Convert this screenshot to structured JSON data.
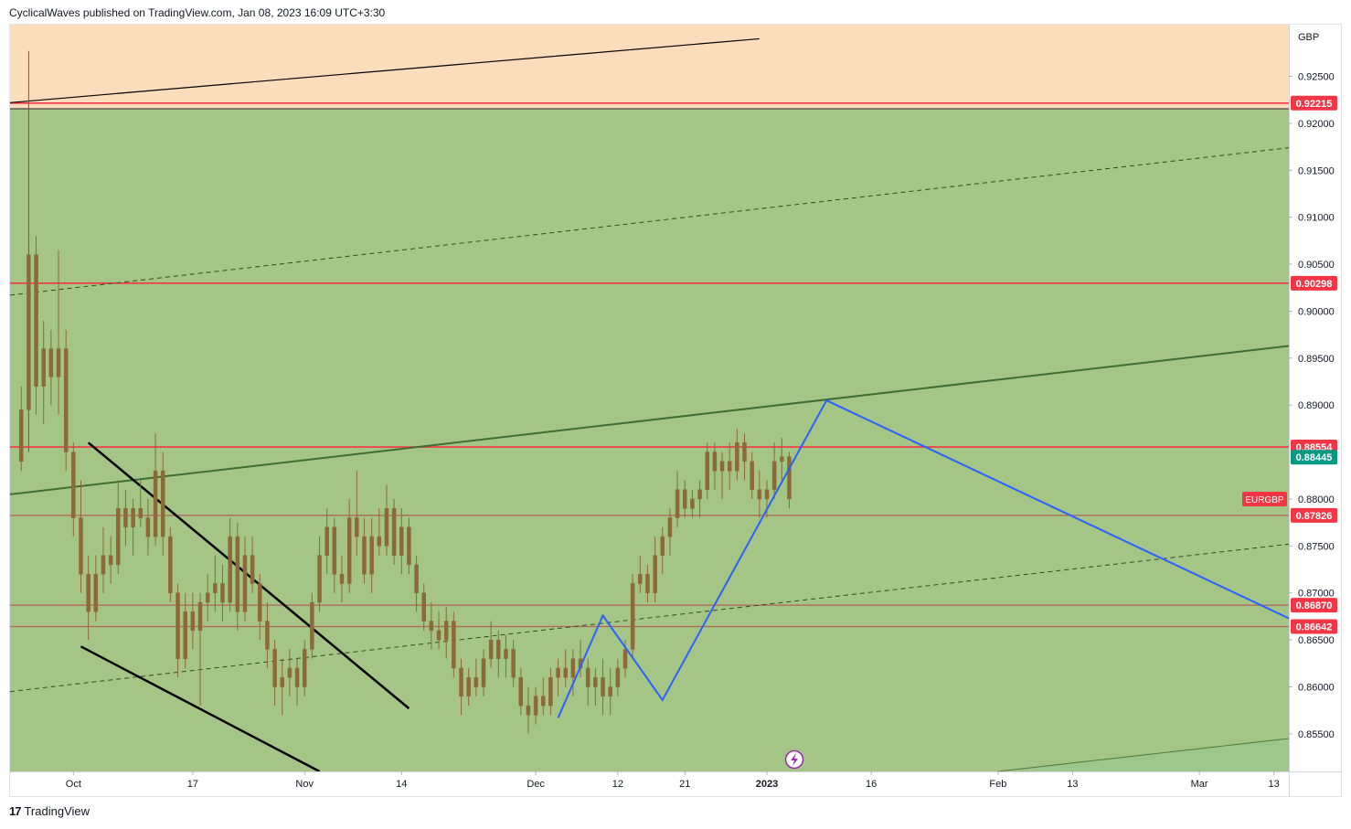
{
  "header": {
    "text": "CyclicalWaves published on TradingView.com, Jan 08, 2023 16:09 UTC+3:30"
  },
  "footer": {
    "logo_glyph": "17",
    "brand": "TradingView"
  },
  "colors": {
    "upper_zone": "#fbdcbb",
    "main_zone": "#a4c585",
    "lower_zone": "#9dc78d",
    "candle": "#8c6a38",
    "red_line": "#f23645",
    "brown_line": "#b0645a",
    "blue_path": "#2962ff",
    "channel_line": "#3f6e34",
    "price_tag_red": "#f23645",
    "price_tag_teal": "#089981"
  },
  "chart_data": {
    "type": "candlestick",
    "symbol": "EURGBP",
    "currency_label": "GBP",
    "ylim": [
      0.851,
      0.9305
    ],
    "y_ticks": [
      "0.92500",
      "0.92000",
      "0.91500",
      "0.91000",
      "0.90500",
      "0.90000",
      "0.89500",
      "0.89000",
      "0.88000",
      "0.87500",
      "0.87000",
      "0.86500",
      "0.86000",
      "0.85500"
    ],
    "x_ticks": [
      {
        "label": "Oct",
        "day": 7,
        "bold": false
      },
      {
        "label": "17",
        "day": 23,
        "bold": false
      },
      {
        "label": "Nov",
        "day": 38,
        "bold": false
      },
      {
        "label": "14",
        "day": 51,
        "bold": false
      },
      {
        "label": "Dec",
        "day": 69,
        "bold": false
      },
      {
        "label": "12",
        "day": 80,
        "bold": false
      },
      {
        "label": "21",
        "day": 89,
        "bold": false
      },
      {
        "label": "2023",
        "day": 100,
        "bold": true
      },
      {
        "label": "16",
        "day": 114,
        "bold": false
      },
      {
        "label": "Feb",
        "day": 131,
        "bold": false
      },
      {
        "label": "13",
        "day": 141,
        "bold": false
      },
      {
        "label": "Mar",
        "day": 158,
        "bold": false
      },
      {
        "label": "13",
        "day": 168,
        "bold": false
      }
    ],
    "xlim": [
      -1.5,
      170
    ],
    "price_labels": [
      {
        "price": 0.92215,
        "text": "0.92215",
        "style": "red"
      },
      {
        "price": 0.90298,
        "text": "0.90298",
        "style": "red"
      },
      {
        "price": 0.88554,
        "text": "0.88554",
        "style": "red"
      },
      {
        "price": 0.88445,
        "text": "0.88445",
        "style": "teal"
      },
      {
        "price": 0.87826,
        "text": "0.87826",
        "style": "red"
      },
      {
        "price": 0.8687,
        "text": "0.86870",
        "style": "red"
      },
      {
        "price": 0.86642,
        "text": "0.86642",
        "style": "red"
      }
    ],
    "symbol_tag_price": 0.88,
    "horizontal_lines": [
      {
        "price": 0.92215,
        "kind": "red"
      },
      {
        "price": 0.92155,
        "kind": "dark"
      },
      {
        "price": 0.90298,
        "kind": "red"
      },
      {
        "price": 0.88554,
        "kind": "red"
      },
      {
        "price": 0.87826,
        "kind": "brown"
      },
      {
        "price": 0.8687,
        "kind": "brown"
      },
      {
        "price": 0.86642,
        "kind": "brown"
      }
    ],
    "zones": [
      {
        "from": 0.92155,
        "to": 0.9305,
        "kind": "upper"
      },
      {
        "from": 0.851,
        "to": 0.92155,
        "kind": "main"
      }
    ],
    "trend_lines": [
      {
        "p1": [
          -1.5,
          0.9222
        ],
        "p2": [
          99,
          0.929
        ],
        "style": "solid",
        "kind": "black-thin"
      },
      {
        "p1": [
          -1.5,
          0.9017
        ],
        "p2": [
          170,
          0.9174
        ],
        "style": "dashed",
        "kind": "dark-dashed"
      },
      {
        "p1": [
          -1.5,
          0.8805
        ],
        "p2": [
          170,
          0.8963
        ],
        "style": "solid",
        "kind": "channel"
      },
      {
        "p1": [
          -1.5,
          0.8595
        ],
        "p2": [
          170,
          0.8752
        ],
        "style": "dashed",
        "kind": "dark-dashed"
      },
      {
        "p1": [
          131,
          0.851
        ],
        "p2": [
          170,
          0.8545
        ],
        "style": "solid",
        "kind": "lower-green"
      },
      {
        "p1": [
          9,
          0.886
        ],
        "p2": [
          52,
          0.8577
        ],
        "style": "solid",
        "kind": "black-thick"
      },
      {
        "p1": [
          8,
          0.8643
        ],
        "p2": [
          40,
          0.851
        ],
        "style": "solid",
        "kind": "black-thick"
      }
    ],
    "projection_path": [
      [
        72,
        0.8567
      ],
      [
        78,
        0.8676
      ],
      [
        86,
        0.8586
      ],
      [
        108,
        0.8905
      ],
      [
        170,
        0.8673
      ]
    ],
    "candles": [
      {
        "d": 0,
        "o": 0.884,
        "h": 0.892,
        "l": 0.883,
        "c": 0.8895
      },
      {
        "d": 1,
        "o": 0.8895,
        "h": 0.9277,
        "l": 0.885,
        "c": 0.906
      },
      {
        "d": 2,
        "o": 0.906,
        "h": 0.908,
        "l": 0.889,
        "c": 0.892
      },
      {
        "d": 3,
        "o": 0.892,
        "h": 0.899,
        "l": 0.888,
        "c": 0.896
      },
      {
        "d": 4,
        "o": 0.896,
        "h": 0.898,
        "l": 0.89,
        "c": 0.893
      },
      {
        "d": 5,
        "o": 0.893,
        "h": 0.9065,
        "l": 0.889,
        "c": 0.896
      },
      {
        "d": 6,
        "o": 0.896,
        "h": 0.898,
        "l": 0.883,
        "c": 0.885
      },
      {
        "d": 7,
        "o": 0.885,
        "h": 0.886,
        "l": 0.876,
        "c": 0.878
      },
      {
        "d": 8,
        "o": 0.878,
        "h": 0.882,
        "l": 0.87,
        "c": 0.872
      },
      {
        "d": 9,
        "o": 0.872,
        "h": 0.874,
        "l": 0.865,
        "c": 0.868
      },
      {
        "d": 10,
        "o": 0.868,
        "h": 0.874,
        "l": 0.867,
        "c": 0.872
      },
      {
        "d": 11,
        "o": 0.872,
        "h": 0.877,
        "l": 0.87,
        "c": 0.874
      },
      {
        "d": 12,
        "o": 0.874,
        "h": 0.876,
        "l": 0.871,
        "c": 0.873
      },
      {
        "d": 13,
        "o": 0.873,
        "h": 0.882,
        "l": 0.872,
        "c": 0.879
      },
      {
        "d": 14,
        "o": 0.879,
        "h": 0.881,
        "l": 0.875,
        "c": 0.877
      },
      {
        "d": 15,
        "o": 0.877,
        "h": 0.88,
        "l": 0.874,
        "c": 0.879
      },
      {
        "d": 16,
        "o": 0.879,
        "h": 0.882,
        "l": 0.877,
        "c": 0.878
      },
      {
        "d": 17,
        "o": 0.878,
        "h": 0.88,
        "l": 0.874,
        "c": 0.876
      },
      {
        "d": 18,
        "o": 0.876,
        "h": 0.887,
        "l": 0.875,
        "c": 0.883
      },
      {
        "d": 19,
        "o": 0.883,
        "h": 0.885,
        "l": 0.874,
        "c": 0.876
      },
      {
        "d": 20,
        "o": 0.876,
        "h": 0.877,
        "l": 0.869,
        "c": 0.87
      },
      {
        "d": 21,
        "o": 0.87,
        "h": 0.871,
        "l": 0.861,
        "c": 0.863
      },
      {
        "d": 22,
        "o": 0.863,
        "h": 0.87,
        "l": 0.862,
        "c": 0.868
      },
      {
        "d": 23,
        "o": 0.868,
        "h": 0.87,
        "l": 0.864,
        "c": 0.866
      },
      {
        "d": 24,
        "o": 0.866,
        "h": 0.87,
        "l": 0.858,
        "c": 0.869
      },
      {
        "d": 25,
        "o": 0.869,
        "h": 0.872,
        "l": 0.867,
        "c": 0.87
      },
      {
        "d": 26,
        "o": 0.87,
        "h": 0.874,
        "l": 0.868,
        "c": 0.871
      },
      {
        "d": 27,
        "o": 0.871,
        "h": 0.873,
        "l": 0.867,
        "c": 0.869
      },
      {
        "d": 28,
        "o": 0.869,
        "h": 0.878,
        "l": 0.868,
        "c": 0.876
      },
      {
        "d": 29,
        "o": 0.876,
        "h": 0.8775,
        "l": 0.866,
        "c": 0.868
      },
      {
        "d": 30,
        "o": 0.868,
        "h": 0.876,
        "l": 0.867,
        "c": 0.874
      },
      {
        "d": 31,
        "o": 0.874,
        "h": 0.876,
        "l": 0.87,
        "c": 0.871
      },
      {
        "d": 32,
        "o": 0.871,
        "h": 0.872,
        "l": 0.865,
        "c": 0.867
      },
      {
        "d": 33,
        "o": 0.867,
        "h": 0.869,
        "l": 0.862,
        "c": 0.864
      },
      {
        "d": 34,
        "o": 0.864,
        "h": 0.865,
        "l": 0.858,
        "c": 0.86
      },
      {
        "d": 35,
        "o": 0.86,
        "h": 0.863,
        "l": 0.857,
        "c": 0.861
      },
      {
        "d": 36,
        "o": 0.861,
        "h": 0.864,
        "l": 0.859,
        "c": 0.862
      },
      {
        "d": 37,
        "o": 0.862,
        "h": 0.863,
        "l": 0.858,
        "c": 0.86
      },
      {
        "d": 38,
        "o": 0.86,
        "h": 0.865,
        "l": 0.859,
        "c": 0.864
      },
      {
        "d": 39,
        "o": 0.864,
        "h": 0.87,
        "l": 0.863,
        "c": 0.869
      },
      {
        "d": 40,
        "o": 0.869,
        "h": 0.876,
        "l": 0.868,
        "c": 0.874
      },
      {
        "d": 41,
        "o": 0.874,
        "h": 0.879,
        "l": 0.872,
        "c": 0.877
      },
      {
        "d": 42,
        "o": 0.877,
        "h": 0.878,
        "l": 0.87,
        "c": 0.872
      },
      {
        "d": 43,
        "o": 0.872,
        "h": 0.874,
        "l": 0.869,
        "c": 0.871
      },
      {
        "d": 44,
        "o": 0.871,
        "h": 0.88,
        "l": 0.87,
        "c": 0.878
      },
      {
        "d": 45,
        "o": 0.878,
        "h": 0.883,
        "l": 0.874,
        "c": 0.876
      },
      {
        "d": 46,
        "o": 0.876,
        "h": 0.878,
        "l": 0.871,
        "c": 0.872
      },
      {
        "d": 47,
        "o": 0.872,
        "h": 0.878,
        "l": 0.87,
        "c": 0.876
      },
      {
        "d": 48,
        "o": 0.876,
        "h": 0.879,
        "l": 0.874,
        "c": 0.875
      },
      {
        "d": 49,
        "o": 0.875,
        "h": 0.8815,
        "l": 0.874,
        "c": 0.879
      },
      {
        "d": 50,
        "o": 0.879,
        "h": 0.88,
        "l": 0.873,
        "c": 0.874
      },
      {
        "d": 51,
        "o": 0.874,
        "h": 0.879,
        "l": 0.872,
        "c": 0.877
      },
      {
        "d": 52,
        "o": 0.877,
        "h": 0.878,
        "l": 0.872,
        "c": 0.873
      },
      {
        "d": 53,
        "o": 0.873,
        "h": 0.874,
        "l": 0.868,
        "c": 0.87
      },
      {
        "d": 54,
        "o": 0.87,
        "h": 0.871,
        "l": 0.866,
        "c": 0.867
      },
      {
        "d": 55,
        "o": 0.867,
        "h": 0.869,
        "l": 0.864,
        "c": 0.866
      },
      {
        "d": 56,
        "o": 0.866,
        "h": 0.868,
        "l": 0.864,
        "c": 0.865
      },
      {
        "d": 57,
        "o": 0.865,
        "h": 0.8685,
        "l": 0.863,
        "c": 0.867
      },
      {
        "d": 58,
        "o": 0.867,
        "h": 0.868,
        "l": 0.861,
        "c": 0.862
      },
      {
        "d": 59,
        "o": 0.862,
        "h": 0.863,
        "l": 0.857,
        "c": 0.859
      },
      {
        "d": 60,
        "o": 0.859,
        "h": 0.862,
        "l": 0.858,
        "c": 0.861
      },
      {
        "d": 61,
        "o": 0.861,
        "h": 0.863,
        "l": 0.859,
        "c": 0.86
      },
      {
        "d": 62,
        "o": 0.86,
        "h": 0.864,
        "l": 0.859,
        "c": 0.863
      },
      {
        "d": 63,
        "o": 0.863,
        "h": 0.867,
        "l": 0.862,
        "c": 0.865
      },
      {
        "d": 64,
        "o": 0.865,
        "h": 0.866,
        "l": 0.861,
        "c": 0.863
      },
      {
        "d": 65,
        "o": 0.863,
        "h": 0.8655,
        "l": 0.861,
        "c": 0.864
      },
      {
        "d": 66,
        "o": 0.864,
        "h": 0.865,
        "l": 0.86,
        "c": 0.861
      },
      {
        "d": 67,
        "o": 0.861,
        "h": 0.862,
        "l": 0.857,
        "c": 0.858
      },
      {
        "d": 68,
        "o": 0.858,
        "h": 0.86,
        "l": 0.855,
        "c": 0.857
      },
      {
        "d": 69,
        "o": 0.857,
        "h": 0.86,
        "l": 0.856,
        "c": 0.859
      },
      {
        "d": 70,
        "o": 0.859,
        "h": 0.861,
        "l": 0.857,
        "c": 0.858
      },
      {
        "d": 71,
        "o": 0.858,
        "h": 0.862,
        "l": 0.857,
        "c": 0.861
      },
      {
        "d": 72,
        "o": 0.861,
        "h": 0.863,
        "l": 0.859,
        "c": 0.862
      },
      {
        "d": 73,
        "o": 0.862,
        "h": 0.864,
        "l": 0.86,
        "c": 0.861
      },
      {
        "d": 74,
        "o": 0.861,
        "h": 0.864,
        "l": 0.859,
        "c": 0.863
      },
      {
        "d": 75,
        "o": 0.863,
        "h": 0.865,
        "l": 0.861,
        "c": 0.862
      },
      {
        "d": 76,
        "o": 0.862,
        "h": 0.863,
        "l": 0.858,
        "c": 0.86
      },
      {
        "d": 77,
        "o": 0.86,
        "h": 0.862,
        "l": 0.858,
        "c": 0.861
      },
      {
        "d": 78,
        "o": 0.861,
        "h": 0.863,
        "l": 0.857,
        "c": 0.859
      },
      {
        "d": 79,
        "o": 0.859,
        "h": 0.862,
        "l": 0.857,
        "c": 0.86
      },
      {
        "d": 80,
        "o": 0.86,
        "h": 0.863,
        "l": 0.859,
        "c": 0.862
      },
      {
        "d": 81,
        "o": 0.862,
        "h": 0.865,
        "l": 0.861,
        "c": 0.864
      },
      {
        "d": 82,
        "o": 0.864,
        "h": 0.872,
        "l": 0.863,
        "c": 0.871
      },
      {
        "d": 83,
        "o": 0.871,
        "h": 0.874,
        "l": 0.87,
        "c": 0.872
      },
      {
        "d": 84,
        "o": 0.872,
        "h": 0.873,
        "l": 0.869,
        "c": 0.87
      },
      {
        "d": 85,
        "o": 0.87,
        "h": 0.876,
        "l": 0.869,
        "c": 0.874
      },
      {
        "d": 86,
        "o": 0.874,
        "h": 0.877,
        "l": 0.872,
        "c": 0.876
      },
      {
        "d": 87,
        "o": 0.876,
        "h": 0.879,
        "l": 0.874,
        "c": 0.878
      },
      {
        "d": 88,
        "o": 0.878,
        "h": 0.883,
        "l": 0.877,
        "c": 0.881
      },
      {
        "d": 89,
        "o": 0.881,
        "h": 0.882,
        "l": 0.878,
        "c": 0.879
      },
      {
        "d": 90,
        "o": 0.879,
        "h": 0.881,
        "l": 0.878,
        "c": 0.88
      },
      {
        "d": 91,
        "o": 0.88,
        "h": 0.882,
        "l": 0.878,
        "c": 0.881
      },
      {
        "d": 92,
        "o": 0.881,
        "h": 0.886,
        "l": 0.88,
        "c": 0.885
      },
      {
        "d": 93,
        "o": 0.885,
        "h": 0.886,
        "l": 0.881,
        "c": 0.883
      },
      {
        "d": 94,
        "o": 0.883,
        "h": 0.885,
        "l": 0.88,
        "c": 0.884
      },
      {
        "d": 95,
        "o": 0.884,
        "h": 0.886,
        "l": 0.881,
        "c": 0.883
      },
      {
        "d": 96,
        "o": 0.883,
        "h": 0.8875,
        "l": 0.882,
        "c": 0.886
      },
      {
        "d": 97,
        "o": 0.886,
        "h": 0.887,
        "l": 0.882,
        "c": 0.884
      },
      {
        "d": 98,
        "o": 0.884,
        "h": 0.885,
        "l": 0.88,
        "c": 0.881
      },
      {
        "d": 99,
        "o": 0.881,
        "h": 0.883,
        "l": 0.878,
        "c": 0.88
      },
      {
        "d": 100,
        "o": 0.88,
        "h": 0.882,
        "l": 0.878,
        "c": 0.881
      },
      {
        "d": 101,
        "o": 0.881,
        "h": 0.886,
        "l": 0.88,
        "c": 0.884
      },
      {
        "d": 102,
        "o": 0.884,
        "h": 0.8865,
        "l": 0.882,
        "c": 0.8845
      },
      {
        "d": 103,
        "o": 0.8845,
        "h": 0.885,
        "l": 0.879,
        "c": 0.88
      }
    ]
  }
}
